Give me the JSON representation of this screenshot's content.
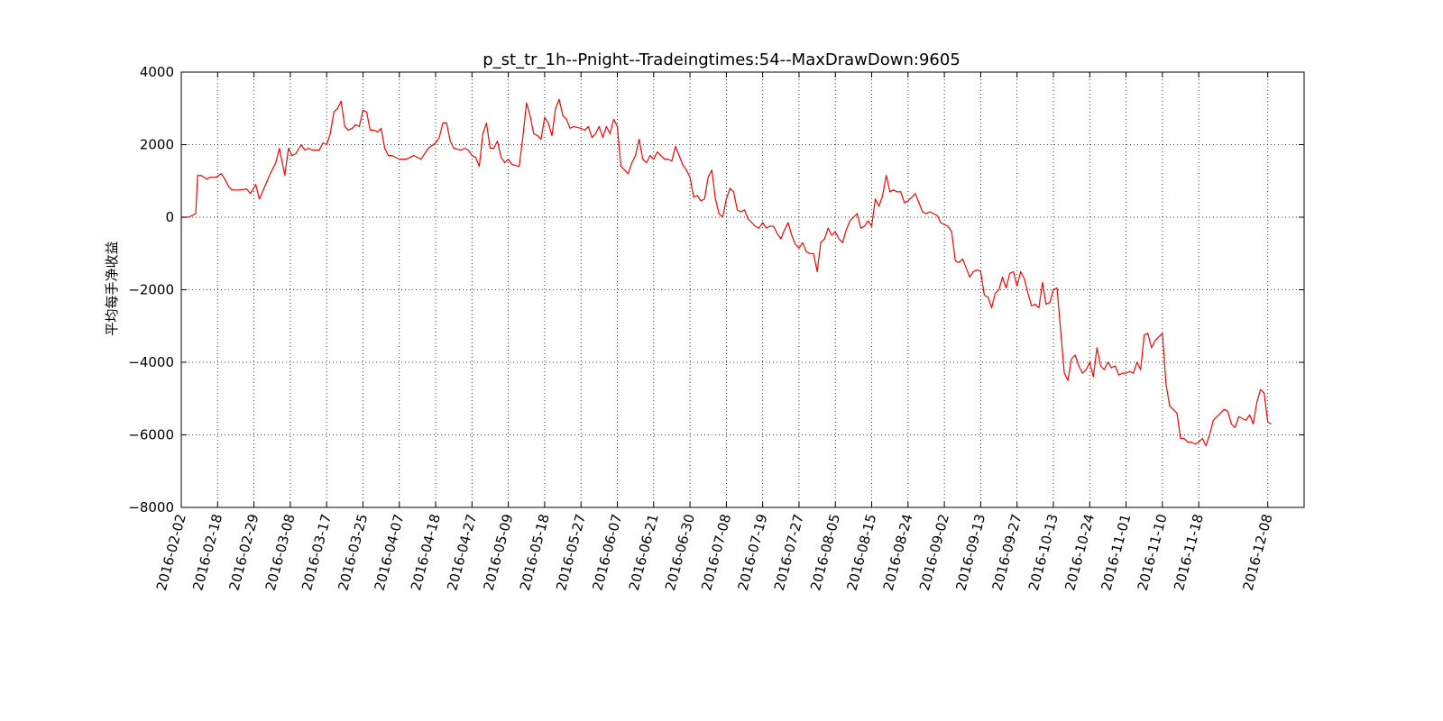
{
  "chart_data": {
    "type": "line",
    "title": "p_st_tr_1h--Pnight--Tradeingtimes:54--MaxDrawDown:9605",
    "ylabel": "平均每手净收益",
    "xlabel": "",
    "ylim": [
      -8000,
      4000
    ],
    "yticks": [
      4000,
      2000,
      0,
      -2000,
      -4000,
      -6000,
      -8000
    ],
    "ytick_labels": [
      "4000",
      "2000",
      "0",
      "−2000",
      "−4000",
      "−6000",
      "−8000"
    ],
    "grid": true,
    "line_color": "#ff0000",
    "xticks": [
      {
        "label": "2016-02-02",
        "index": 0
      },
      {
        "label": "2016-02-18",
        "index": 10
      },
      {
        "label": "2016-02-29",
        "index": 20
      },
      {
        "label": "2016-03-08",
        "index": 30
      },
      {
        "label": "2016-03-17",
        "index": 40
      },
      {
        "label": "2016-03-25",
        "index": 50
      },
      {
        "label": "2016-04-07",
        "index": 60
      },
      {
        "label": "2016-04-18",
        "index": 70
      },
      {
        "label": "2016-04-27",
        "index": 80
      },
      {
        "label": "2016-05-09",
        "index": 90
      },
      {
        "label": "2016-05-18",
        "index": 100
      },
      {
        "label": "2016-05-27",
        "index": 110
      },
      {
        "label": "2016-06-07",
        "index": 120
      },
      {
        "label": "2016-06-21",
        "index": 130
      },
      {
        "label": "2016-06-30",
        "index": 140
      },
      {
        "label": "2016-07-08",
        "index": 150
      },
      {
        "label": "2016-07-19",
        "index": 160
      },
      {
        "label": "2016-07-27",
        "index": 170
      },
      {
        "label": "2016-08-05",
        "index": 180
      },
      {
        "label": "2016-08-15",
        "index": 190
      },
      {
        "label": "2016-08-24",
        "index": 200
      },
      {
        "label": "2016-09-02",
        "index": 210
      },
      {
        "label": "2016-09-13",
        "index": 220
      },
      {
        "label": "2016-09-27",
        "index": 230
      },
      {
        "label": "2016-10-13",
        "index": 240
      },
      {
        "label": "2016-10-24",
        "index": 250
      },
      {
        "label": "2016-11-01",
        "index": 260
      },
      {
        "label": "2016-11-10",
        "index": 270
      },
      {
        "label": "2016-11-18",
        "index": 280
      },
      {
        "label": "2016-12-08",
        "index": 299
      }
    ],
    "x_index_range": [
      0,
      309
    ],
    "series": [
      {
        "points": [
          [
            0,
            0
          ],
          [
            2,
            0
          ],
          [
            4,
            100
          ],
          [
            4.5,
            1150
          ],
          [
            5.5,
            1150
          ],
          [
            7,
            1050
          ],
          [
            8,
            1100
          ],
          [
            9.5,
            1100
          ],
          [
            11,
            1200
          ],
          [
            12,
            1050
          ],
          [
            13,
            850
          ],
          [
            14,
            750
          ],
          [
            16,
            750
          ],
          [
            18,
            780
          ],
          [
            19,
            650
          ],
          [
            20.5,
            900
          ],
          [
            21.5,
            500
          ],
          [
            23,
            850
          ],
          [
            24.5,
            1200
          ],
          [
            26,
            1500
          ],
          [
            27,
            1900
          ],
          [
            28.5,
            1150
          ],
          [
            29.5,
            1900
          ],
          [
            30.5,
            1700
          ],
          [
            31.5,
            1750
          ],
          [
            33,
            2000
          ],
          [
            34,
            1850
          ],
          [
            35,
            1900
          ],
          [
            36,
            1850
          ],
          [
            38,
            1850
          ],
          [
            39,
            2050
          ],
          [
            40,
            2000
          ],
          [
            41,
            2300
          ],
          [
            42,
            2900
          ],
          [
            43,
            3000
          ],
          [
            44,
            3200
          ],
          [
            45,
            2500
          ],
          [
            46,
            2400
          ],
          [
            47,
            2450
          ],
          [
            48,
            2550
          ],
          [
            49,
            2500
          ],
          [
            50,
            2950
          ],
          [
            51,
            2900
          ],
          [
            52,
            2400
          ],
          [
            53,
            2400
          ],
          [
            54,
            2350
          ],
          [
            55,
            2450
          ],
          [
            56,
            1900
          ],
          [
            57,
            1700
          ],
          [
            58,
            1700
          ],
          [
            60,
            1600
          ],
          [
            62,
            1600
          ],
          [
            64,
            1700
          ],
          [
            65,
            1650
          ],
          [
            66,
            1600
          ],
          [
            68,
            1900
          ],
          [
            70,
            2050
          ],
          [
            71,
            2200
          ],
          [
            72,
            2600
          ],
          [
            73,
            2600
          ],
          [
            74,
            2100
          ],
          [
            75,
            1900
          ],
          [
            77,
            1850
          ],
          [
            78,
            1900
          ],
          [
            79,
            1850
          ],
          [
            80,
            1700
          ],
          [
            81,
            1650
          ],
          [
            82,
            1400
          ],
          [
            83,
            2300
          ],
          [
            84,
            2600
          ],
          [
            85,
            1900
          ],
          [
            86,
            1900
          ],
          [
            87,
            2100
          ],
          [
            88,
            1650
          ],
          [
            89,
            1500
          ],
          [
            90,
            1600
          ],
          [
            91,
            1450
          ],
          [
            93,
            1400
          ],
          [
            94,
            2200
          ],
          [
            95,
            3150
          ],
          [
            96,
            2800
          ],
          [
            97,
            2300
          ],
          [
            98,
            2250
          ],
          [
            99,
            2150
          ],
          [
            100,
            2750
          ],
          [
            101,
            2600
          ],
          [
            102,
            2250
          ],
          [
            103,
            3000
          ],
          [
            104,
            3250
          ],
          [
            105,
            2800
          ],
          [
            106,
            2700
          ],
          [
            107,
            2450
          ],
          [
            108,
            2500
          ],
          [
            110,
            2450
          ],
          [
            111,
            2400
          ],
          [
            112,
            2500
          ],
          [
            113,
            2200
          ],
          [
            114,
            2300
          ],
          [
            115,
            2500
          ],
          [
            116,
            2200
          ],
          [
            117,
            2500
          ],
          [
            118,
            2300
          ],
          [
            119,
            2700
          ],
          [
            120,
            2500
          ],
          [
            121,
            1400
          ],
          [
            122,
            1300
          ],
          [
            123,
            1200
          ],
          [
            124,
            1500
          ],
          [
            125,
            1700
          ],
          [
            126,
            2150
          ],
          [
            127,
            1600
          ],
          [
            128,
            1500
          ],
          [
            129,
            1700
          ],
          [
            130,
            1600
          ],
          [
            131,
            1800
          ],
          [
            132,
            1700
          ],
          [
            133,
            1600
          ],
          [
            134,
            1600
          ],
          [
            135,
            1550
          ],
          [
            136,
            1950
          ],
          [
            137,
            1700
          ],
          [
            138,
            1450
          ],
          [
            139,
            1300
          ],
          [
            140,
            1100
          ],
          [
            141,
            550
          ],
          [
            142,
            600
          ],
          [
            143,
            450
          ],
          [
            144,
            500
          ],
          [
            145,
            1100
          ],
          [
            146,
            1300
          ],
          [
            147,
            500
          ],
          [
            148,
            100
          ],
          [
            149,
            0
          ],
          [
            150,
            500
          ],
          [
            151,
            800
          ],
          [
            152,
            700
          ],
          [
            153,
            200
          ],
          [
            154,
            150
          ],
          [
            155,
            200
          ],
          [
            156,
            -50
          ],
          [
            157,
            -150
          ],
          [
            158,
            -250
          ],
          [
            159,
            -300
          ],
          [
            160,
            -150
          ],
          [
            161,
            -300
          ],
          [
            162,
            -250
          ],
          [
            163,
            -250
          ],
          [
            164,
            -450
          ],
          [
            165,
            -600
          ],
          [
            166,
            -350
          ],
          [
            167,
            -150
          ],
          [
            168,
            -500
          ],
          [
            169,
            -750
          ],
          [
            170,
            -850
          ],
          [
            171,
            -700
          ],
          [
            172,
            -950
          ],
          [
            173,
            -1000
          ],
          [
            174,
            -1000
          ],
          [
            175,
            -1500
          ],
          [
            176,
            -700
          ],
          [
            177,
            -600
          ],
          [
            178,
            -300
          ],
          [
            179,
            -500
          ],
          [
            180,
            -400
          ],
          [
            181,
            -600
          ],
          [
            182,
            -700
          ],
          [
            183,
            -350
          ],
          [
            184,
            -100
          ],
          [
            185,
            0
          ],
          [
            186,
            100
          ],
          [
            187,
            -300
          ],
          [
            188,
            -250
          ],
          [
            189,
            -100
          ],
          [
            190,
            -250
          ],
          [
            191,
            500
          ],
          [
            192,
            300
          ],
          [
            193,
            600
          ],
          [
            194,
            1150
          ],
          [
            195,
            700
          ],
          [
            196,
            750
          ],
          [
            197,
            700
          ],
          [
            198,
            700
          ],
          [
            199,
            400
          ],
          [
            200,
            450
          ],
          [
            201,
            550
          ],
          [
            202,
            650
          ],
          [
            203,
            400
          ],
          [
            204,
            150
          ],
          [
            205,
            100
          ],
          [
            206,
            150
          ],
          [
            207,
            100
          ],
          [
            208,
            50
          ],
          [
            209,
            -150
          ],
          [
            210,
            -200
          ],
          [
            211,
            -250
          ],
          [
            212,
            -400
          ],
          [
            213,
            -1200
          ],
          [
            214,
            -1250
          ],
          [
            215,
            -1150
          ],
          [
            216,
            -1400
          ],
          [
            217,
            -1650
          ],
          [
            218,
            -1500
          ],
          [
            219,
            -1450
          ],
          [
            220,
            -1500
          ],
          [
            221,
            -2150
          ],
          [
            222,
            -2200
          ],
          [
            223,
            -2500
          ],
          [
            224,
            -2100
          ],
          [
            225,
            -2000
          ],
          [
            226,
            -1650
          ],
          [
            227,
            -1950
          ],
          [
            228,
            -1550
          ],
          [
            229,
            -1500
          ],
          [
            230,
            -1900
          ],
          [
            231,
            -1500
          ],
          [
            232,
            -1700
          ],
          [
            233,
            -2100
          ],
          [
            234,
            -2450
          ],
          [
            235,
            -2400
          ],
          [
            236,
            -2500
          ],
          [
            237,
            -1800
          ],
          [
            238,
            -2400
          ],
          [
            239,
            -2350
          ],
          [
            240,
            -2000
          ],
          [
            241,
            -1950
          ],
          [
            242,
            -3100
          ],
          [
            243,
            -4300
          ],
          [
            244,
            -4500
          ],
          [
            245,
            -3900
          ],
          [
            246,
            -3800
          ],
          [
            247,
            -4100
          ],
          [
            248,
            -4300
          ],
          [
            249,
            -4200
          ],
          [
            250,
            -4000
          ],
          [
            251,
            -4400
          ],
          [
            252,
            -3600
          ],
          [
            253,
            -4100
          ],
          [
            254,
            -4200
          ],
          [
            255,
            -4000
          ],
          [
            256,
            -4150
          ],
          [
            257,
            -4100
          ],
          [
            258,
            -4350
          ],
          [
            259,
            -4300
          ],
          [
            260,
            -4300
          ],
          [
            261,
            -4250
          ],
          [
            262,
            -4300
          ],
          [
            263,
            -4000
          ],
          [
            264,
            -4200
          ],
          [
            265,
            -3250
          ],
          [
            266,
            -3200
          ],
          [
            267,
            -3600
          ],
          [
            268,
            -3400
          ],
          [
            269,
            -3300
          ],
          [
            270,
            -3200
          ],
          [
            271,
            -4600
          ],
          [
            272,
            -5200
          ],
          [
            273,
            -5300
          ],
          [
            274,
            -5400
          ],
          [
            275,
            -6100
          ],
          [
            276,
            -6100
          ],
          [
            277,
            -6200
          ],
          [
            278,
            -6200
          ],
          [
            279,
            -6250
          ],
          [
            280,
            -6200
          ],
          [
            281,
            -6100
          ],
          [
            282,
            -6300
          ],
          [
            283,
            -6000
          ],
          [
            284,
            -5600
          ],
          [
            285,
            -5500
          ],
          [
            286,
            -5400
          ],
          [
            287,
            -5300
          ],
          [
            288,
            -5350
          ],
          [
            289,
            -5700
          ],
          [
            290,
            -5800
          ],
          [
            291,
            -5500
          ],
          [
            292,
            -5550
          ],
          [
            293,
            -5600
          ],
          [
            294,
            -5450
          ],
          [
            295,
            -5700
          ],
          [
            296,
            -5100
          ],
          [
            297,
            -4750
          ],
          [
            298,
            -4850
          ],
          [
            299,
            -5650
          ],
          [
            300,
            -5700
          ]
        ]
      }
    ]
  }
}
